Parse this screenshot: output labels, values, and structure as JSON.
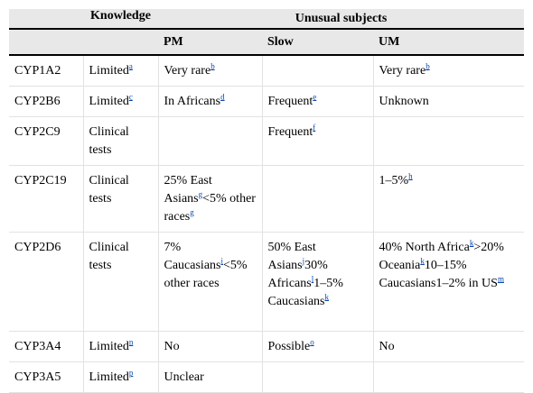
{
  "header": {
    "knowledge": "Knowledge",
    "group": "Unusual subjects",
    "sub": [
      "PM",
      "Slow",
      "UM"
    ]
  },
  "rows": [
    {
      "gene": "CYP1A2",
      "cells": [
        [
          {
            "text": "Limited"
          },
          {
            "note": "a"
          }
        ],
        [
          {
            "text": "Very rare"
          },
          {
            "note": "b"
          }
        ],
        [],
        [
          {
            "text": "Very rare"
          },
          {
            "note": "b"
          }
        ]
      ]
    },
    {
      "gene": "CYP2B6",
      "cells": [
        [
          {
            "text": "Limited"
          },
          {
            "note": "c"
          }
        ],
        [
          {
            "text": "In Africans"
          },
          {
            "note": "d"
          }
        ],
        [
          {
            "text": "Frequent"
          },
          {
            "note": "e"
          }
        ],
        [
          {
            "text": "Unknown"
          }
        ]
      ]
    },
    {
      "gene": "CYP2C9",
      "cells": [
        [
          {
            "text": "Clinical tests"
          }
        ],
        [],
        [
          {
            "text": "Frequent"
          },
          {
            "note": "f"
          }
        ],
        []
      ]
    },
    {
      "gene": "CYP2C19",
      "cells": [
        [
          {
            "text": "Clinical tests"
          }
        ],
        [
          {
            "text": "25% East Asians"
          },
          {
            "note": "g"
          },
          {
            "text": "<5% other races"
          },
          {
            "note": "g"
          }
        ],
        [],
        [
          {
            "text": "1–5%"
          },
          {
            "note": "h"
          }
        ]
      ]
    },
    {
      "gene": "CYP2D6",
      "cells": [
        [
          {
            "text": "Clinical tests"
          }
        ],
        [
          {
            "text": "7% Caucasians"
          },
          {
            "note": "i"
          },
          {
            "text": "<5% other races"
          }
        ],
        [
          {
            "text": "50% East Asians"
          },
          {
            "note": "j"
          },
          {
            "text": "30% Africans"
          },
          {
            "note": "l"
          },
          {
            "text": "1–5% Caucasians"
          },
          {
            "note": "k"
          }
        ],
        [
          {
            "text": "40% North Africa"
          },
          {
            "note": "k"
          },
          {
            "text": ">20% Oceania"
          },
          {
            "note": "k"
          },
          {
            "text": "10–15% Caucasians1–2% in US"
          },
          {
            "note": "m"
          }
        ]
      ]
    },
    {
      "gene": "CYP3A4",
      "cells": [
        [
          {
            "text": "Limited"
          },
          {
            "note": "n"
          }
        ],
        [
          {
            "text": "No"
          }
        ],
        [
          {
            "text": "Possible"
          },
          {
            "note": "o"
          }
        ],
        [
          {
            "text": "No"
          }
        ]
      ]
    },
    {
      "gene": "CYP3A5",
      "cells": [
        [
          {
            "text": "Limited"
          },
          {
            "note": "p"
          }
        ],
        [
          {
            "text": "Unclear"
          }
        ],
        [],
        []
      ]
    }
  ]
}
